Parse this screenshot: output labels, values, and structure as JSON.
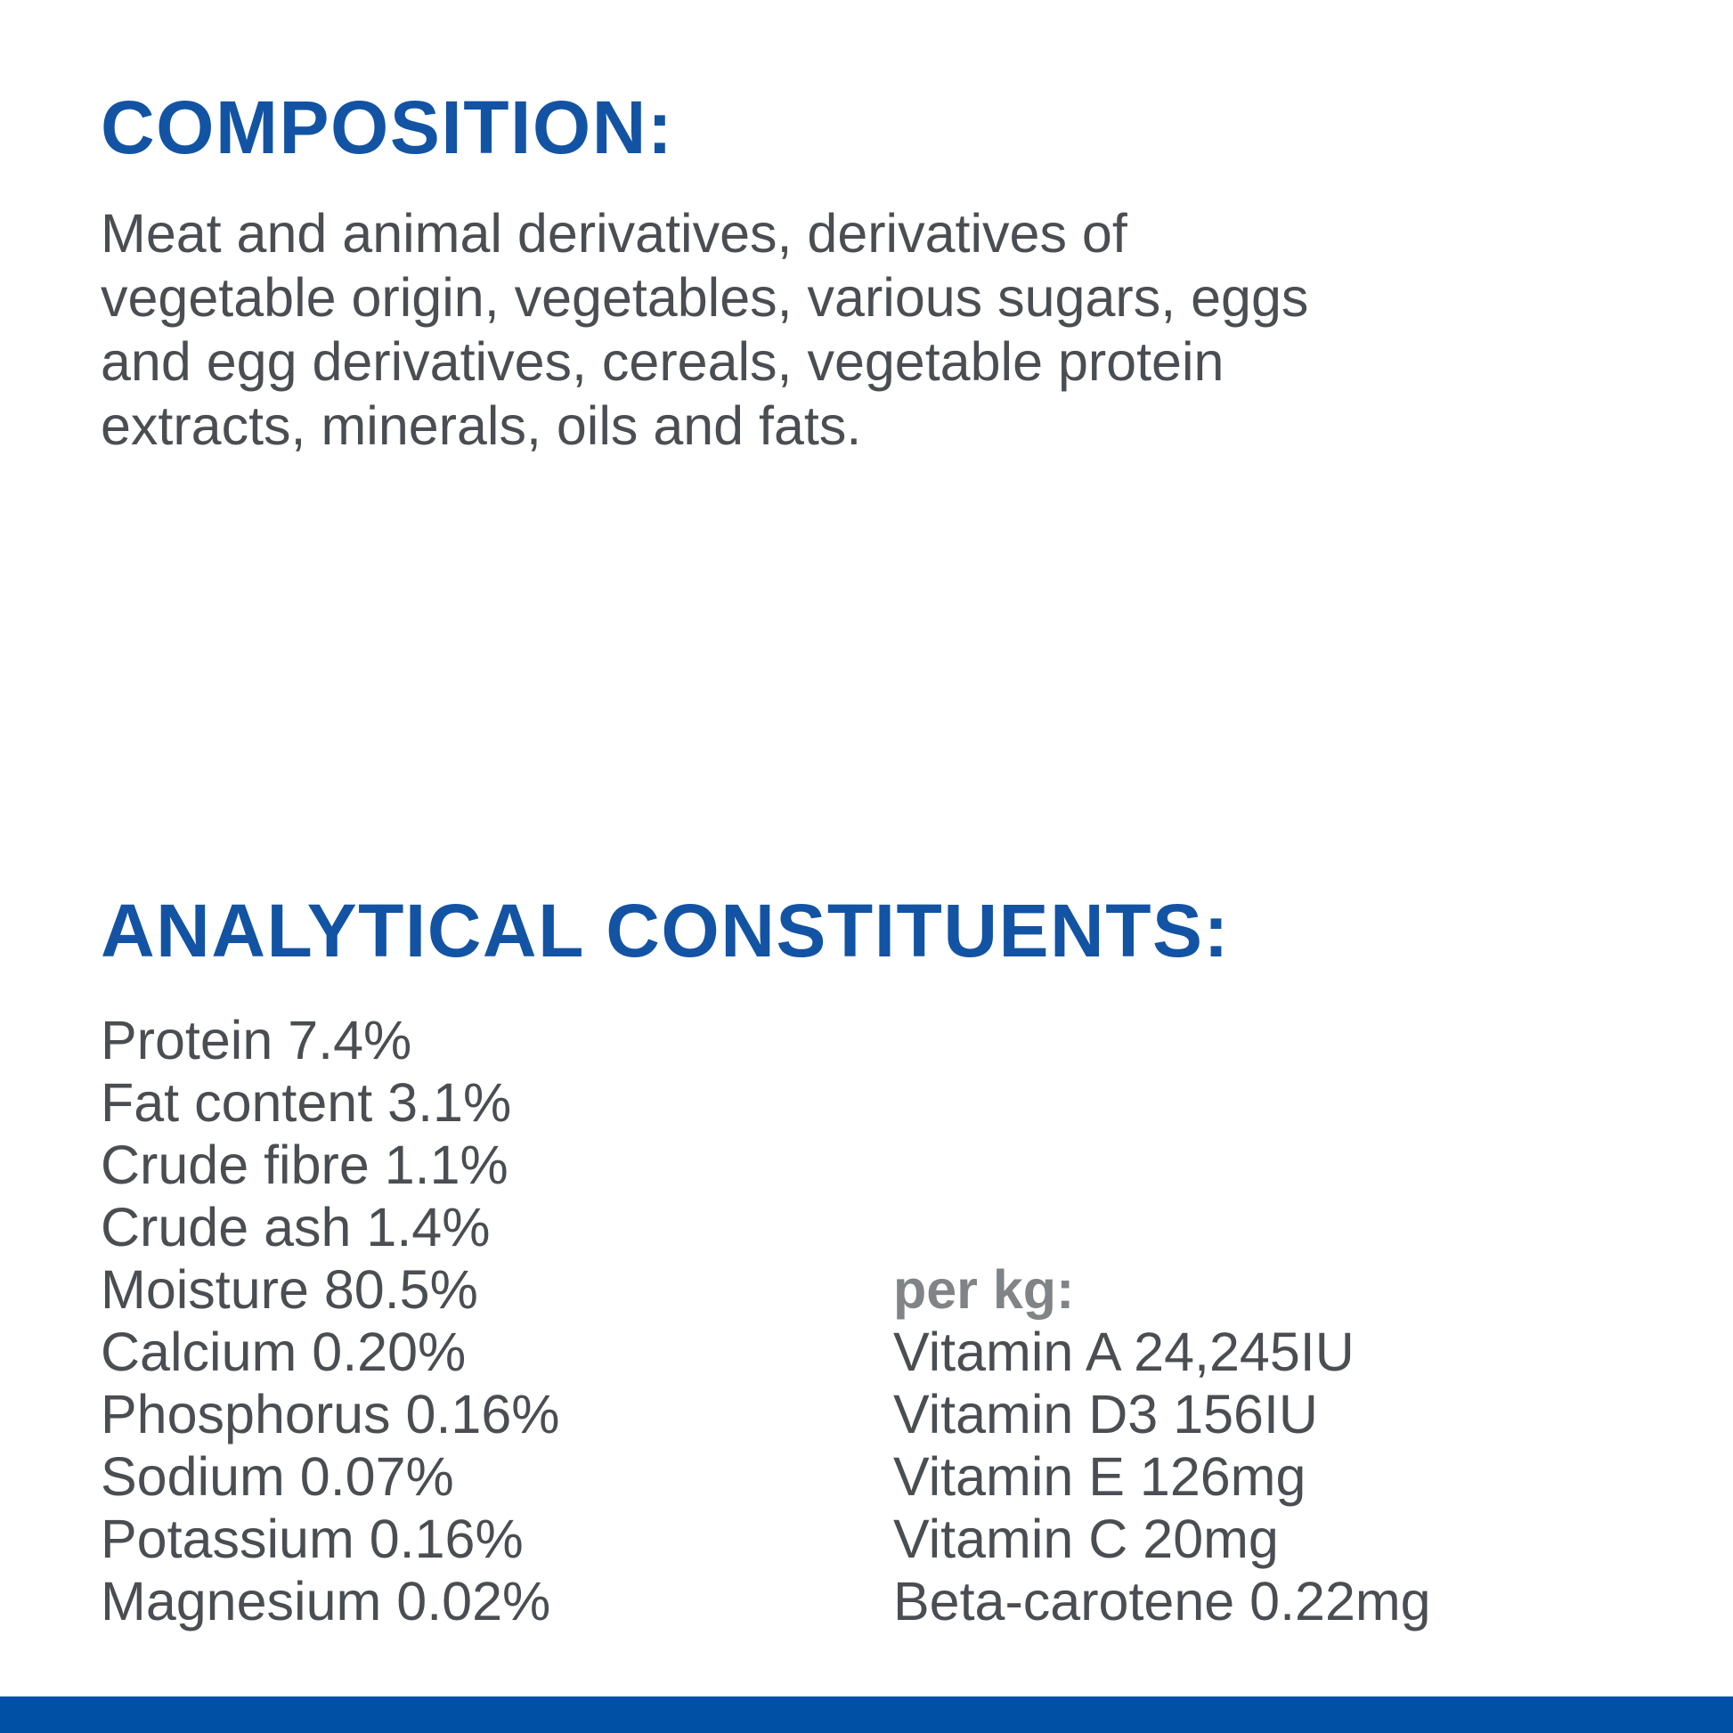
{
  "colors": {
    "heading_blue": "#1253a4",
    "body_text": "#4a4e53",
    "muted_label": "#808487",
    "accent_bar": "#0051a5",
    "background": "#ffffff"
  },
  "composition": {
    "heading": "COMPOSITION:",
    "body": "Meat and animal derivatives, derivatives of\nvegetable origin, vegetables, various sugars, eggs\nand egg derivatives, cereals, vegetable protein\nextracts, minerals, oils and fats."
  },
  "analytical": {
    "heading": "ANALYTICAL CONSTITUENTS:",
    "constituents": [
      {
        "name": "Protein",
        "value": "7.4%"
      },
      {
        "name": "Fat content",
        "value": "3.1%"
      },
      {
        "name": "Crude fibre",
        "value": "1.1%"
      },
      {
        "name": "Crude ash",
        "value": "1.4%"
      },
      {
        "name": "Moisture",
        "value": "80.5%"
      },
      {
        "name": "Calcium",
        "value": "0.20%"
      },
      {
        "name": "Phosphorus",
        "value": "0.16%"
      },
      {
        "name": "Sodium",
        "value": "0.07%"
      },
      {
        "name": "Potassium",
        "value": "0.16%"
      },
      {
        "name": "Magnesium",
        "value": "0.02%"
      }
    ],
    "per_kg": {
      "label": "per kg:",
      "items": [
        {
          "name": "Vitamin A",
          "value": "24,245IU"
        },
        {
          "name": "Vitamin D3",
          "value": "156IU"
        },
        {
          "name": "Vitamin E",
          "value": "126mg"
        },
        {
          "name": "Vitamin C",
          "value": "20mg"
        },
        {
          "name": "Beta-carotene",
          "value": "0.22mg"
        }
      ]
    }
  }
}
